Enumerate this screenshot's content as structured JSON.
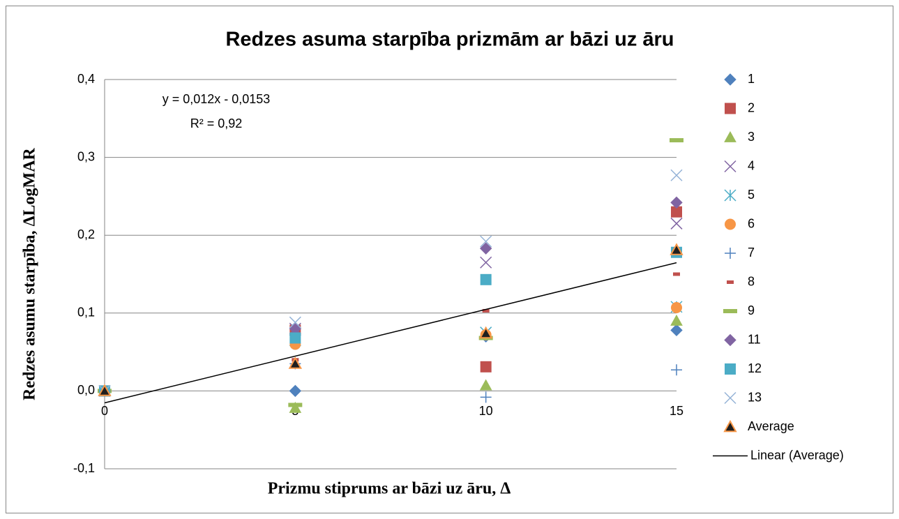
{
  "chart_data": {
    "type": "scatter",
    "title": "Redzes asuma starpība prizmām ar bāzi uz āru",
    "x_label": "Prizmu stiprums ar bāzi uz āru, Δ",
    "y_label": "Redzes asumu starpība, ΔLogMAR",
    "x": [
      0,
      5,
      10,
      15
    ],
    "xlim": [
      0,
      15
    ],
    "xticks": [
      0,
      5,
      10,
      15
    ],
    "ylim": [
      -0.1,
      0.4
    ],
    "yticks": [
      {
        "value": -0.1,
        "label": "-0,1"
      },
      {
        "value": 0,
        "label": "0,0"
      },
      {
        "value": 0.1,
        "label": "0,1"
      },
      {
        "value": 0.2,
        "label": "0,2"
      },
      {
        "value": 0.3,
        "label": "0,3"
      },
      {
        "value": 0.4,
        "label": "0,4"
      }
    ],
    "grid": true,
    "legend": "right",
    "series": [
      {
        "name": "1",
        "color": "#4f81bd",
        "marker": "diamond",
        "values": [
          0,
          0,
          0.07,
          0.078
        ]
      },
      {
        "name": "2",
        "color": "#c0504d",
        "marker": "square",
        "values": [
          0,
          0.078,
          0.031,
          0.23
        ]
      },
      {
        "name": "3",
        "color": "#9bbb59",
        "marker": "triangle",
        "values": [
          0,
          -0.022,
          0.007,
          0.09
        ]
      },
      {
        "name": "4",
        "color": "#8064a2",
        "marker": "x",
        "values": [
          0,
          0.08,
          0.165,
          0.215
        ]
      },
      {
        "name": "5",
        "color": "#4bacc6",
        "marker": "star",
        "values": [
          0,
          0.065,
          0.075,
          0.108
        ]
      },
      {
        "name": "6",
        "color": "#f79646",
        "marker": "circle",
        "values": [
          0,
          0.06,
          0.072,
          0.107
        ]
      },
      {
        "name": "7",
        "color": "#4f81bd",
        "marker": "plus",
        "values": [
          0,
          0.035,
          -0.008,
          0.027
        ]
      },
      {
        "name": "8",
        "color": "#c0504d",
        "marker": "dash",
        "values": [
          0,
          0.04,
          0.103,
          0.15
        ]
      },
      {
        "name": "9",
        "color": "#9bbb59",
        "marker": "longdash",
        "values": [
          0,
          -0.018,
          0.068,
          0.322
        ]
      },
      {
        "name": "11",
        "color": "#8064a2",
        "marker": "diamond",
        "values": [
          0,
          0.08,
          0.183,
          0.242
        ]
      },
      {
        "name": "12",
        "color": "#4bacc6",
        "marker": "square",
        "values": [
          0,
          0.068,
          0.143,
          0.178
        ]
      },
      {
        "name": "13",
        "color": "#95b3d7",
        "marker": "x",
        "values": [
          0,
          0.088,
          0.192,
          0.277
        ]
      },
      {
        "name": "Average",
        "color": "#1f1f1f",
        "edge": "#f79646",
        "marker": "triangle",
        "values": [
          0,
          0.035,
          0.074,
          0.181
        ]
      }
    ],
    "trendline": {
      "name": "Linear (Average)",
      "color": "#000000",
      "slope": 0.012,
      "intercept": -0.0153,
      "equation": "y = 0,012x - 0,0153",
      "r2": "R² = 0,92"
    }
  }
}
